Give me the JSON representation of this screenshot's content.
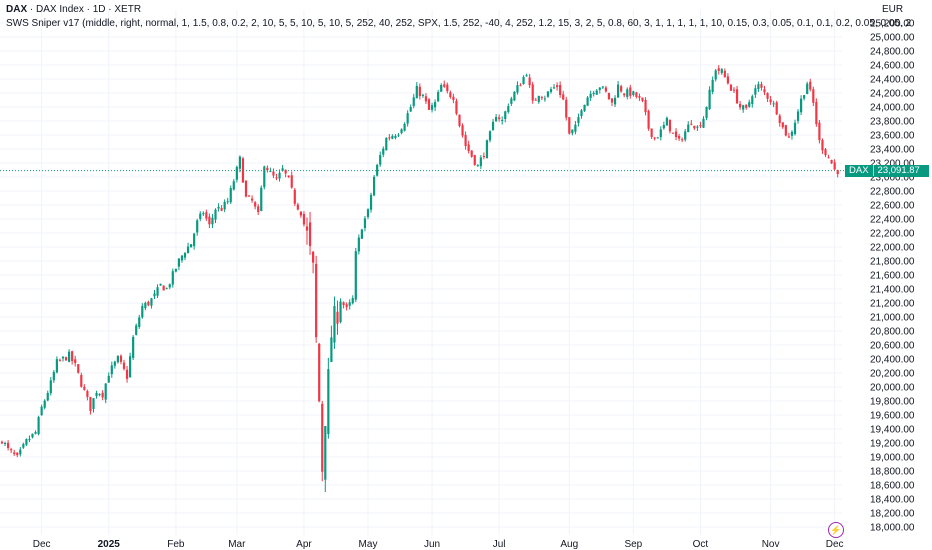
{
  "header": {
    "symbol": "DAX",
    "title_rest": " · DAX Index · 1D · XETR",
    "indicator": "SWS Sniper v17 (middle, right, normal, 1, 1.5, 0.8, 0.2, 2, 10, 5, 5, 10, 5, 10, 5, 252, 40, 252, SPX, 1.5, 252, -40, 4, 252, 1.2, 15, 3, 2, 5, 0.8, 60, 3, 1, 1, 1, 1, 1, 10, 0.15, 0.3, 0.05, 0.1, 0.1, 0.2, 0.05, 0.05, 2",
    "currency": "EUR"
  },
  "price_tag": {
    "symbol": "DAX",
    "value": "23,091.87"
  },
  "icons": {
    "bolt": "lightning-bolt-icon"
  },
  "colors": {
    "up": "#089981",
    "down": "#F23645",
    "grid": "#F0F3FA",
    "last_line": "#089981"
  },
  "chart_data": {
    "type": "candlestick",
    "title": "DAX · DAX Index · 1D · XETR",
    "currency": "EUR",
    "y_ticks": [
      "25,200.00",
      "25,000.00",
      "24,800.00",
      "24,600.00",
      "24,400.00",
      "24,200.00",
      "24,000.00",
      "23,800.00",
      "23,600.00",
      "23,400.00",
      "23,200.00",
      "23,000.00",
      "22,800.00",
      "22,600.00",
      "22,400.00",
      "22,200.00",
      "22,000.00",
      "21,800.00",
      "21,600.00",
      "21,400.00",
      "21,200.00",
      "21,000.00",
      "20,800.00",
      "20,600.00",
      "20,400.00",
      "20,200.00",
      "20,000.00",
      "19,800.00",
      "19,600.00",
      "19,400.00",
      "19,200.00",
      "19,000.00",
      "18,800.00",
      "18,600.00",
      "18,400.00",
      "18,200.00",
      "18,000.00"
    ],
    "y_tick_values": [
      25200,
      25000,
      24800,
      24600,
      24400,
      24200,
      24000,
      23800,
      23600,
      23400,
      23200,
      23000,
      22800,
      22600,
      22400,
      22200,
      22000,
      21800,
      21600,
      21400,
      21200,
      21000,
      20800,
      20600,
      20400,
      20200,
      20000,
      19800,
      19600,
      19400,
      19200,
      19000,
      18800,
      18600,
      18400,
      18200,
      18000
    ],
    "ylim": [
      17920,
      25230
    ],
    "x_ticks": [
      {
        "label": "Dec",
        "bold": false,
        "day": 13
      },
      {
        "label": "2025",
        "bold": true,
        "day": 35
      },
      {
        "label": "Feb",
        "bold": false,
        "day": 57
      },
      {
        "label": "Mar",
        "bold": false,
        "day": 77
      },
      {
        "label": "Apr",
        "bold": false,
        "day": 99
      },
      {
        "label": "May",
        "bold": false,
        "day": 120
      },
      {
        "label": "Jun",
        "bold": false,
        "day": 141
      },
      {
        "label": "Jul",
        "bold": false,
        "day": 163
      },
      {
        "label": "Aug",
        "bold": false,
        "day": 186
      },
      {
        "label": "Sep",
        "bold": false,
        "day": 207
      },
      {
        "label": "Oct",
        "bold": false,
        "day": 229
      },
      {
        "label": "Nov",
        "bold": false,
        "day": 252
      },
      {
        "label": "Dec",
        "bold": false,
        "day": 273
      }
    ],
    "last_price": 23091.87,
    "close_path": [
      [
        0,
        19250
      ],
      [
        2,
        19100
      ],
      [
        5,
        18980
      ],
      [
        8,
        19220
      ],
      [
        11,
        19350
      ],
      [
        13,
        19700
      ],
      [
        16,
        20050
      ],
      [
        18,
        20350
      ],
      [
        20,
        20400
      ],
      [
        22,
        20450
      ],
      [
        24,
        20300
      ],
      [
        26,
        20050
      ],
      [
        29,
        19700
      ],
      [
        31,
        19950
      ],
      [
        33,
        19900
      ],
      [
        35,
        20200
      ],
      [
        38,
        20400
      ],
      [
        41,
        20150
      ],
      [
        43,
        20700
      ],
      [
        46,
        21150
      ],
      [
        48,
        21200
      ],
      [
        50,
        21300
      ],
      [
        52,
        21450
      ],
      [
        54,
        21400
      ],
      [
        56,
        21600
      ],
      [
        58,
        21800
      ],
      [
        60,
        21950
      ],
      [
        62,
        22050
      ],
      [
        64,
        22350
      ],
      [
        66,
        22500
      ],
      [
        68,
        22300
      ],
      [
        70,
        22550
      ],
      [
        72,
        22550
      ],
      [
        74,
        22650
      ],
      [
        76,
        22950
      ],
      [
        78,
        23250
      ],
      [
        80,
        22700
      ],
      [
        82,
        22650
      ],
      [
        84,
        22450
      ],
      [
        86,
        23200
      ],
      [
        88,
        23050
      ],
      [
        90,
        22950
      ],
      [
        92,
        23100
      ],
      [
        94,
        22950
      ],
      [
        96,
        22650
      ],
      [
        98,
        22500
      ],
      [
        100,
        22150
      ],
      [
        101,
        21900
      ],
      [
        102,
        21650
      ],
      [
        103,
        20650
      ],
      [
        104,
        19800
      ],
      [
        105,
        18850
      ],
      [
        106,
        19600
      ],
      [
        107,
        20100
      ],
      [
        108,
        20750
      ],
      [
        109,
        20950
      ],
      [
        111,
        21250
      ],
      [
        113,
        21100
      ],
      [
        115,
        21250
      ],
      [
        116,
        21900
      ],
      [
        118,
        22300
      ],
      [
        120,
        22500
      ],
      [
        122,
        23000
      ],
      [
        124,
        23300
      ],
      [
        126,
        23550
      ],
      [
        128,
        23600
      ],
      [
        130,
        23650
      ],
      [
        132,
        23800
      ],
      [
        134,
        24000
      ],
      [
        136,
        24250
      ],
      [
        138,
        24150
      ],
      [
        140,
        23950
      ],
      [
        142,
        24050
      ],
      [
        144,
        24300
      ],
      [
        146,
        24200
      ],
      [
        148,
        24150
      ],
      [
        150,
        23750
      ],
      [
        152,
        23450
      ],
      [
        154,
        23300
      ],
      [
        156,
        23150
      ],
      [
        158,
        23350
      ],
      [
        160,
        23600
      ],
      [
        162,
        23900
      ],
      [
        164,
        23800
      ],
      [
        166,
        24050
      ],
      [
        168,
        24200
      ],
      [
        170,
        24350
      ],
      [
        172,
        24500
      ],
      [
        174,
        24050
      ],
      [
        176,
        24200
      ],
      [
        178,
        24150
      ],
      [
        180,
        24250
      ],
      [
        182,
        24300
      ],
      [
        184,
        24100
      ],
      [
        186,
        23600
      ],
      [
        188,
        23700
      ],
      [
        190,
        24000
      ],
      [
        192,
        24150
      ],
      [
        194,
        24250
      ],
      [
        196,
        24300
      ],
      [
        198,
        24200
      ],
      [
        200,
        24050
      ],
      [
        202,
        24300
      ],
      [
        204,
        24200
      ],
      [
        206,
        24200
      ],
      [
        208,
        24150
      ],
      [
        210,
        24050
      ],
      [
        212,
        23700
      ],
      [
        214,
        23550
      ],
      [
        216,
        23650
      ],
      [
        218,
        23800
      ],
      [
        220,
        23600
      ],
      [
        222,
        23500
      ],
      [
        224,
        23650
      ],
      [
        226,
        23800
      ],
      [
        228,
        23700
      ],
      [
        230,
        23850
      ],
      [
        232,
        24200
      ],
      [
        234,
        24550
      ],
      [
        236,
        24500
      ],
      [
        238,
        24350
      ],
      [
        240,
        24200
      ],
      [
        242,
        24000
      ],
      [
        244,
        23950
      ],
      [
        246,
        24200
      ],
      [
        248,
        24300
      ],
      [
        250,
        24200
      ],
      [
        252,
        24100
      ],
      [
        254,
        23950
      ],
      [
        256,
        23700
      ],
      [
        258,
        23550
      ],
      [
        260,
        23800
      ],
      [
        262,
        24100
      ],
      [
        264,
        24350
      ],
      [
        266,
        24050
      ],
      [
        268,
        23500
      ],
      [
        270,
        23350
      ],
      [
        272,
        23200
      ],
      [
        273,
        23100
      ],
      [
        274,
        23092
      ]
    ]
  }
}
